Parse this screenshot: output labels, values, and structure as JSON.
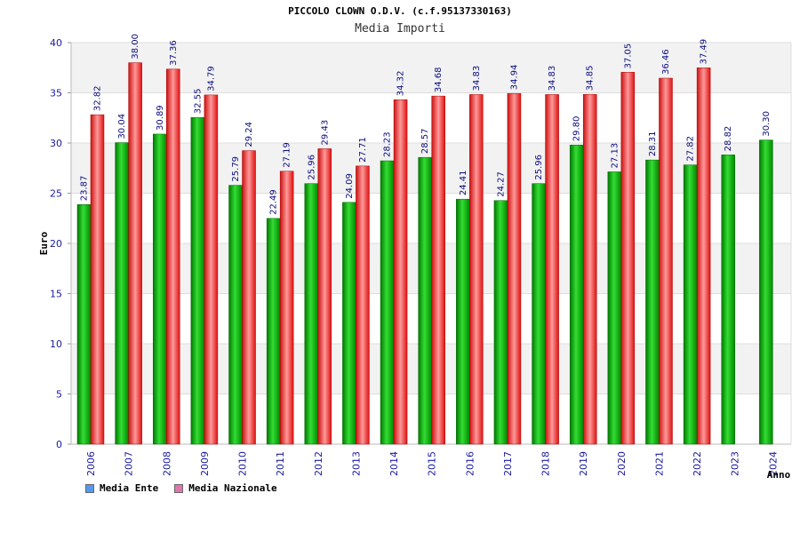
{
  "chart_data": {
    "type": "bar",
    "title": "PICCOLO CLOWN O.D.V. (c.f.95137330163)",
    "subtitle": "Media Importi",
    "ylabel": "Euro",
    "xlabel": "Anno",
    "ylim": [
      0,
      40
    ],
    "yticks": [
      0,
      5,
      10,
      15,
      20,
      25,
      30,
      35,
      40
    ],
    "grid": "horizontal-bands",
    "legend_position": "bottom-left",
    "categories": [
      "2006",
      "2007",
      "2008",
      "2009",
      "2010",
      "2011",
      "2012",
      "2013",
      "2014",
      "2015",
      "2016",
      "2017",
      "2018",
      "2019",
      "2020",
      "2021",
      "2022",
      "2023",
      "2024"
    ],
    "series": [
      {
        "name": "Media Ente",
        "bar_color": "#00aa00",
        "legend_color": "#5599ee",
        "values": [
          23.87,
          30.04,
          30.89,
          32.55,
          25.79,
          22.49,
          25.96,
          24.09,
          28.23,
          28.57,
          24.41,
          24.27,
          25.96,
          29.8,
          27.13,
          28.31,
          27.82,
          28.82,
          30.3
        ],
        "labels": [
          "23.87",
          "30.04",
          "30.89",
          "32.55",
          "25.79",
          "22.49",
          "25.96",
          "24.09",
          "28.23",
          "28.57",
          "24.41",
          "24.27",
          "25.96",
          "29.80",
          "27.13",
          "28.31",
          "27.82",
          "28.82",
          "30.30"
        ]
      },
      {
        "name": "Media Nazionale",
        "bar_color": "#ee2222",
        "legend_color": "#dd77aa",
        "values": [
          32.82,
          38.0,
          37.36,
          34.79,
          29.24,
          27.19,
          29.43,
          27.71,
          34.32,
          34.68,
          34.83,
          34.94,
          34.83,
          34.85,
          37.05,
          36.46,
          37.49,
          null,
          null
        ],
        "labels": [
          "32.82",
          "38.00",
          "37.36",
          "34.79",
          "29.24",
          "27.19",
          "29.43",
          "27.71",
          "34.32",
          "34.68",
          "34.83",
          "34.94",
          "34.83",
          "34.85",
          "37.05",
          "36.46",
          "37.49",
          null,
          null
        ]
      }
    ]
  }
}
